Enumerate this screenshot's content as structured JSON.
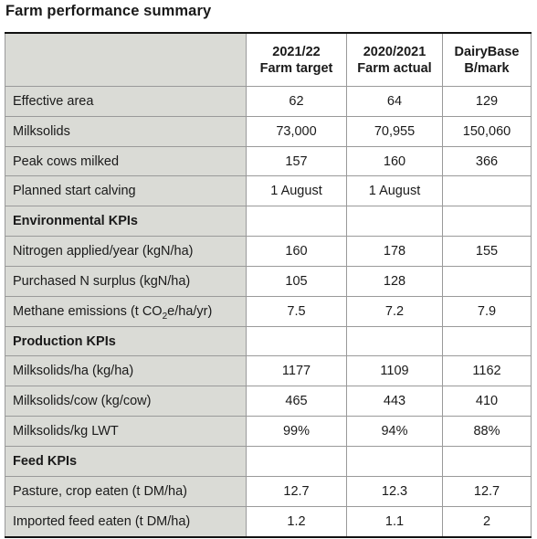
{
  "title": "Farm performance summary",
  "columns": [
    {
      "line1": "2021/22",
      "line2": "Farm target"
    },
    {
      "line1": "2020/2021",
      "line2": "Farm actual"
    },
    {
      "line1": "DairyBase",
      "line2": "B/mark"
    }
  ],
  "rows": [
    {
      "label": "Effective area",
      "values": [
        "62",
        "64",
        "129"
      ]
    },
    {
      "label": "Milksolids",
      "values": [
        "73,000",
        "70,955",
        "150,060"
      ]
    },
    {
      "label": "Peak cows milked",
      "values": [
        "157",
        "160",
        "366"
      ]
    },
    {
      "label": "Planned start calving",
      "values": [
        "1 August",
        "1 August",
        ""
      ]
    },
    {
      "section": "Environmental KPIs"
    },
    {
      "label": "Nitrogen applied/year (kgN/ha)",
      "values": [
        "160",
        "178",
        "155"
      ]
    },
    {
      "label": "Purchased N surplus (kgN/ha)",
      "values": [
        "105",
        "128",
        ""
      ]
    },
    {
      "label_pre": "Methane emissions (t CO",
      "label_sub": "2",
      "label_post": "e/ha/yr)",
      "values": [
        "7.5",
        "7.2",
        "7.9"
      ]
    },
    {
      "section": "Production KPIs"
    },
    {
      "label": "Milksolids/ha (kg/ha)",
      "values": [
        "1177",
        "1109",
        "1162"
      ]
    },
    {
      "label": "Milksolids/cow (kg/cow)",
      "values": [
        "465",
        "443",
        "410"
      ]
    },
    {
      "label": "Milksolids/kg LWT",
      "values": [
        "99%",
        "94%",
        "88%"
      ]
    },
    {
      "section": "Feed KPIs"
    },
    {
      "label": "Pasture, crop eaten (t DM/ha)",
      "values": [
        "12.7",
        "12.3",
        "12.7"
      ]
    },
    {
      "label": "Imported feed eaten (t DM/ha)",
      "values": [
        "1.2",
        "1.1",
        "2"
      ]
    }
  ]
}
